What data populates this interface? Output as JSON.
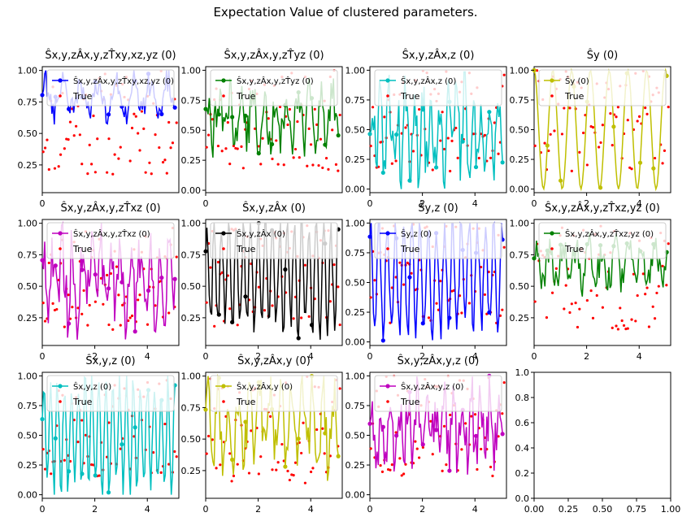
{
  "figure": {
    "title": "Expectation Value of clustered parameters.",
    "true_color": "#ff0000"
  },
  "chart_data": [
    {
      "type": "line",
      "title": "Ŝx,y,zÂx,y,zT̂xy,xz,yz (0)",
      "color": "#0000ff",
      "line_label": "Ŝx,y,zÂx,y,zT̂xy,xz,yz (0)",
      "true_label": "True",
      "xlim": [
        0,
        5.2
      ],
      "ylim": [
        0.03,
        1.03
      ],
      "xticks": [
        0
      ],
      "yticks": [
        0.25,
        0.5,
        0.75,
        1.0
      ],
      "pattern": "stripe",
      "freq": 1.5,
      "phase": 0.3,
      "base": 0.78,
      "amp": 0.22,
      "seed": 11
    },
    {
      "type": "line",
      "title": "Ŝx,y,zÂx,y,zT̂yz (0)",
      "color": "#008000",
      "line_label": "Ŝx,y,zÂx,y,zT̂yz (0)",
      "true_label": "True",
      "xlim": [
        0,
        5.2
      ],
      "ylim": [
        -0.02,
        1.03
      ],
      "xticks": [
        0
      ],
      "yticks": [
        0.0,
        0.25,
        0.5,
        0.75,
        1.0
      ],
      "pattern": "noise",
      "freq": 2.3,
      "phase": 0.8,
      "base": 0.62,
      "amp": 0.3,
      "seed": 23
    },
    {
      "type": "line",
      "title": "Ŝx,y,zÂx,z (0)",
      "color": "#00bfbf",
      "line_label": "Ŝx,y,zÂx,z (0)",
      "true_label": "True",
      "xlim": [
        0,
        5.2
      ],
      "ylim": [
        -0.03,
        1.03
      ],
      "xticks": [
        0,
        2,
        4
      ],
      "yticks": [
        0.0,
        0.25,
        0.5,
        0.75,
        1.0
      ],
      "pattern": "noise",
      "freq": 3.1,
      "phase": 0.2,
      "base": 0.5,
      "amp": 0.48,
      "seed": 37
    },
    {
      "type": "line",
      "title": "Ŝy (0)",
      "color": "#bfbf00",
      "line_label": "Ŝy (0)",
      "true_label": "True",
      "xlim": [
        0,
        5.2
      ],
      "ylim": [
        -0.03,
        1.03
      ],
      "xticks": [
        0,
        2,
        4
      ],
      "yticks": [
        0.0,
        0.25,
        0.5,
        0.75,
        1.0
      ],
      "pattern": "sine",
      "freq": 1.4,
      "phase": 0.0,
      "base": 0.5,
      "amp": 0.5,
      "seed": 41
    },
    {
      "type": "line",
      "title": "Ŝx,y,zÂx,y,zT̂xz (0)",
      "color": "#bf00bf",
      "line_label": "Ŝx,y,zÂx,y,zT̂xz (0)",
      "true_label": "True",
      "xlim": [
        0,
        5.2
      ],
      "ylim": [
        0.03,
        1.03
      ],
      "xticks": [
        0,
        2,
        4
      ],
      "yticks": [
        0.25,
        0.5,
        0.75,
        1.0
      ],
      "pattern": "noise",
      "freq": 2.7,
      "phase": 1.1,
      "base": 0.55,
      "amp": 0.4,
      "seed": 53
    },
    {
      "type": "line",
      "title": "Ŝx,y,zÂx (0)",
      "color": "#000000",
      "line_label": "Ŝx,y,zÂx (0)",
      "true_label": "True",
      "xlim": [
        0,
        5.2
      ],
      "ylim": [
        0.03,
        1.03
      ],
      "xticks": [
        0,
        2,
        4
      ],
      "yticks": [
        0.25,
        0.5,
        0.75,
        1.0
      ],
      "pattern": "osc",
      "freq": 3.6,
      "phase": 0.5,
      "base": 0.6,
      "amp": 0.42,
      "seed": 61
    },
    {
      "type": "line",
      "title": "Ŝy,z (0)",
      "color": "#0000ff",
      "line_label": "Ŝy,z (0)",
      "true_label": "True",
      "xlim": [
        0,
        5.2
      ],
      "ylim": [
        -0.03,
        1.03
      ],
      "xticks": [
        0,
        2,
        4
      ],
      "yticks": [
        0.0,
        0.25,
        0.5,
        0.75,
        1.0
      ],
      "pattern": "osc",
      "freq": 3.2,
      "phase": 0.9,
      "base": 0.55,
      "amp": 0.45,
      "seed": 71
    },
    {
      "type": "line",
      "title": "Ŝx,y,zÂx,y,zT̂xz,yz (0)",
      "color": "#008000",
      "line_label": "Ŝx,y,zÂx,y,zT̂xz,yz (0)",
      "true_label": "True",
      "xlim": [
        0,
        5.2
      ],
      "ylim": [
        0.03,
        1.03
      ],
      "xticks": [
        0,
        2,
        4
      ],
      "yticks": [
        0.25,
        0.5,
        0.75,
        1.0
      ],
      "pattern": "noise",
      "freq": 2.0,
      "phase": 0.4,
      "base": 0.68,
      "amp": 0.22,
      "seed": 83
    },
    {
      "type": "line",
      "title": "Ŝx,y,z (0)",
      "color": "#00bfbf",
      "line_label": "Ŝx,y,z (0)",
      "true_label": "True",
      "xlim": [
        0,
        5.2
      ],
      "ylim": [
        -0.03,
        1.03
      ],
      "xticks": [
        0,
        2,
        4
      ],
      "yticks": [
        0.0,
        0.25,
        0.5,
        0.75,
        1.0
      ],
      "pattern": "osc",
      "freq": 3.8,
      "phase": 0.3,
      "base": 0.5,
      "amp": 0.46,
      "seed": 97
    },
    {
      "type": "line",
      "title": "Ŝx,y,zÂx,y (0)",
      "color": "#bfbf00",
      "line_label": "Ŝx,y,zÂx,y (0)",
      "true_label": "True",
      "xlim": [
        0,
        5.2
      ],
      "ylim": [
        0.03,
        1.03
      ],
      "xticks": [
        0,
        2,
        4
      ],
      "yticks": [
        0.25,
        0.5,
        0.75,
        1.0
      ],
      "pattern": "noise",
      "freq": 2.5,
      "phase": 0.6,
      "base": 0.6,
      "amp": 0.38,
      "seed": 101
    },
    {
      "type": "line",
      "title": "Ŝx,y,zÂx,y,z (0)",
      "color": "#bf00bf",
      "line_label": "Ŝx,y,zÂx,y,z (0)",
      "true_label": "True",
      "xlim": [
        0,
        5.2
      ],
      "ylim": [
        -0.03,
        1.03
      ],
      "xticks": [
        0,
        2,
        4
      ],
      "yticks": [
        0.0,
        0.25,
        0.5,
        0.75,
        1.0
      ],
      "pattern": "noise",
      "freq": 2.9,
      "phase": 0.1,
      "base": 0.55,
      "amp": 0.42,
      "seed": 113
    },
    {
      "type": "empty",
      "title": "",
      "xlim": [
        0,
        1
      ],
      "ylim": [
        0,
        1
      ],
      "xticks": [
        0.0,
        0.25,
        0.5,
        0.75,
        1.0
      ],
      "yticks": [
        0.0,
        0.2,
        0.4,
        0.6,
        0.8,
        1.0
      ]
    }
  ]
}
